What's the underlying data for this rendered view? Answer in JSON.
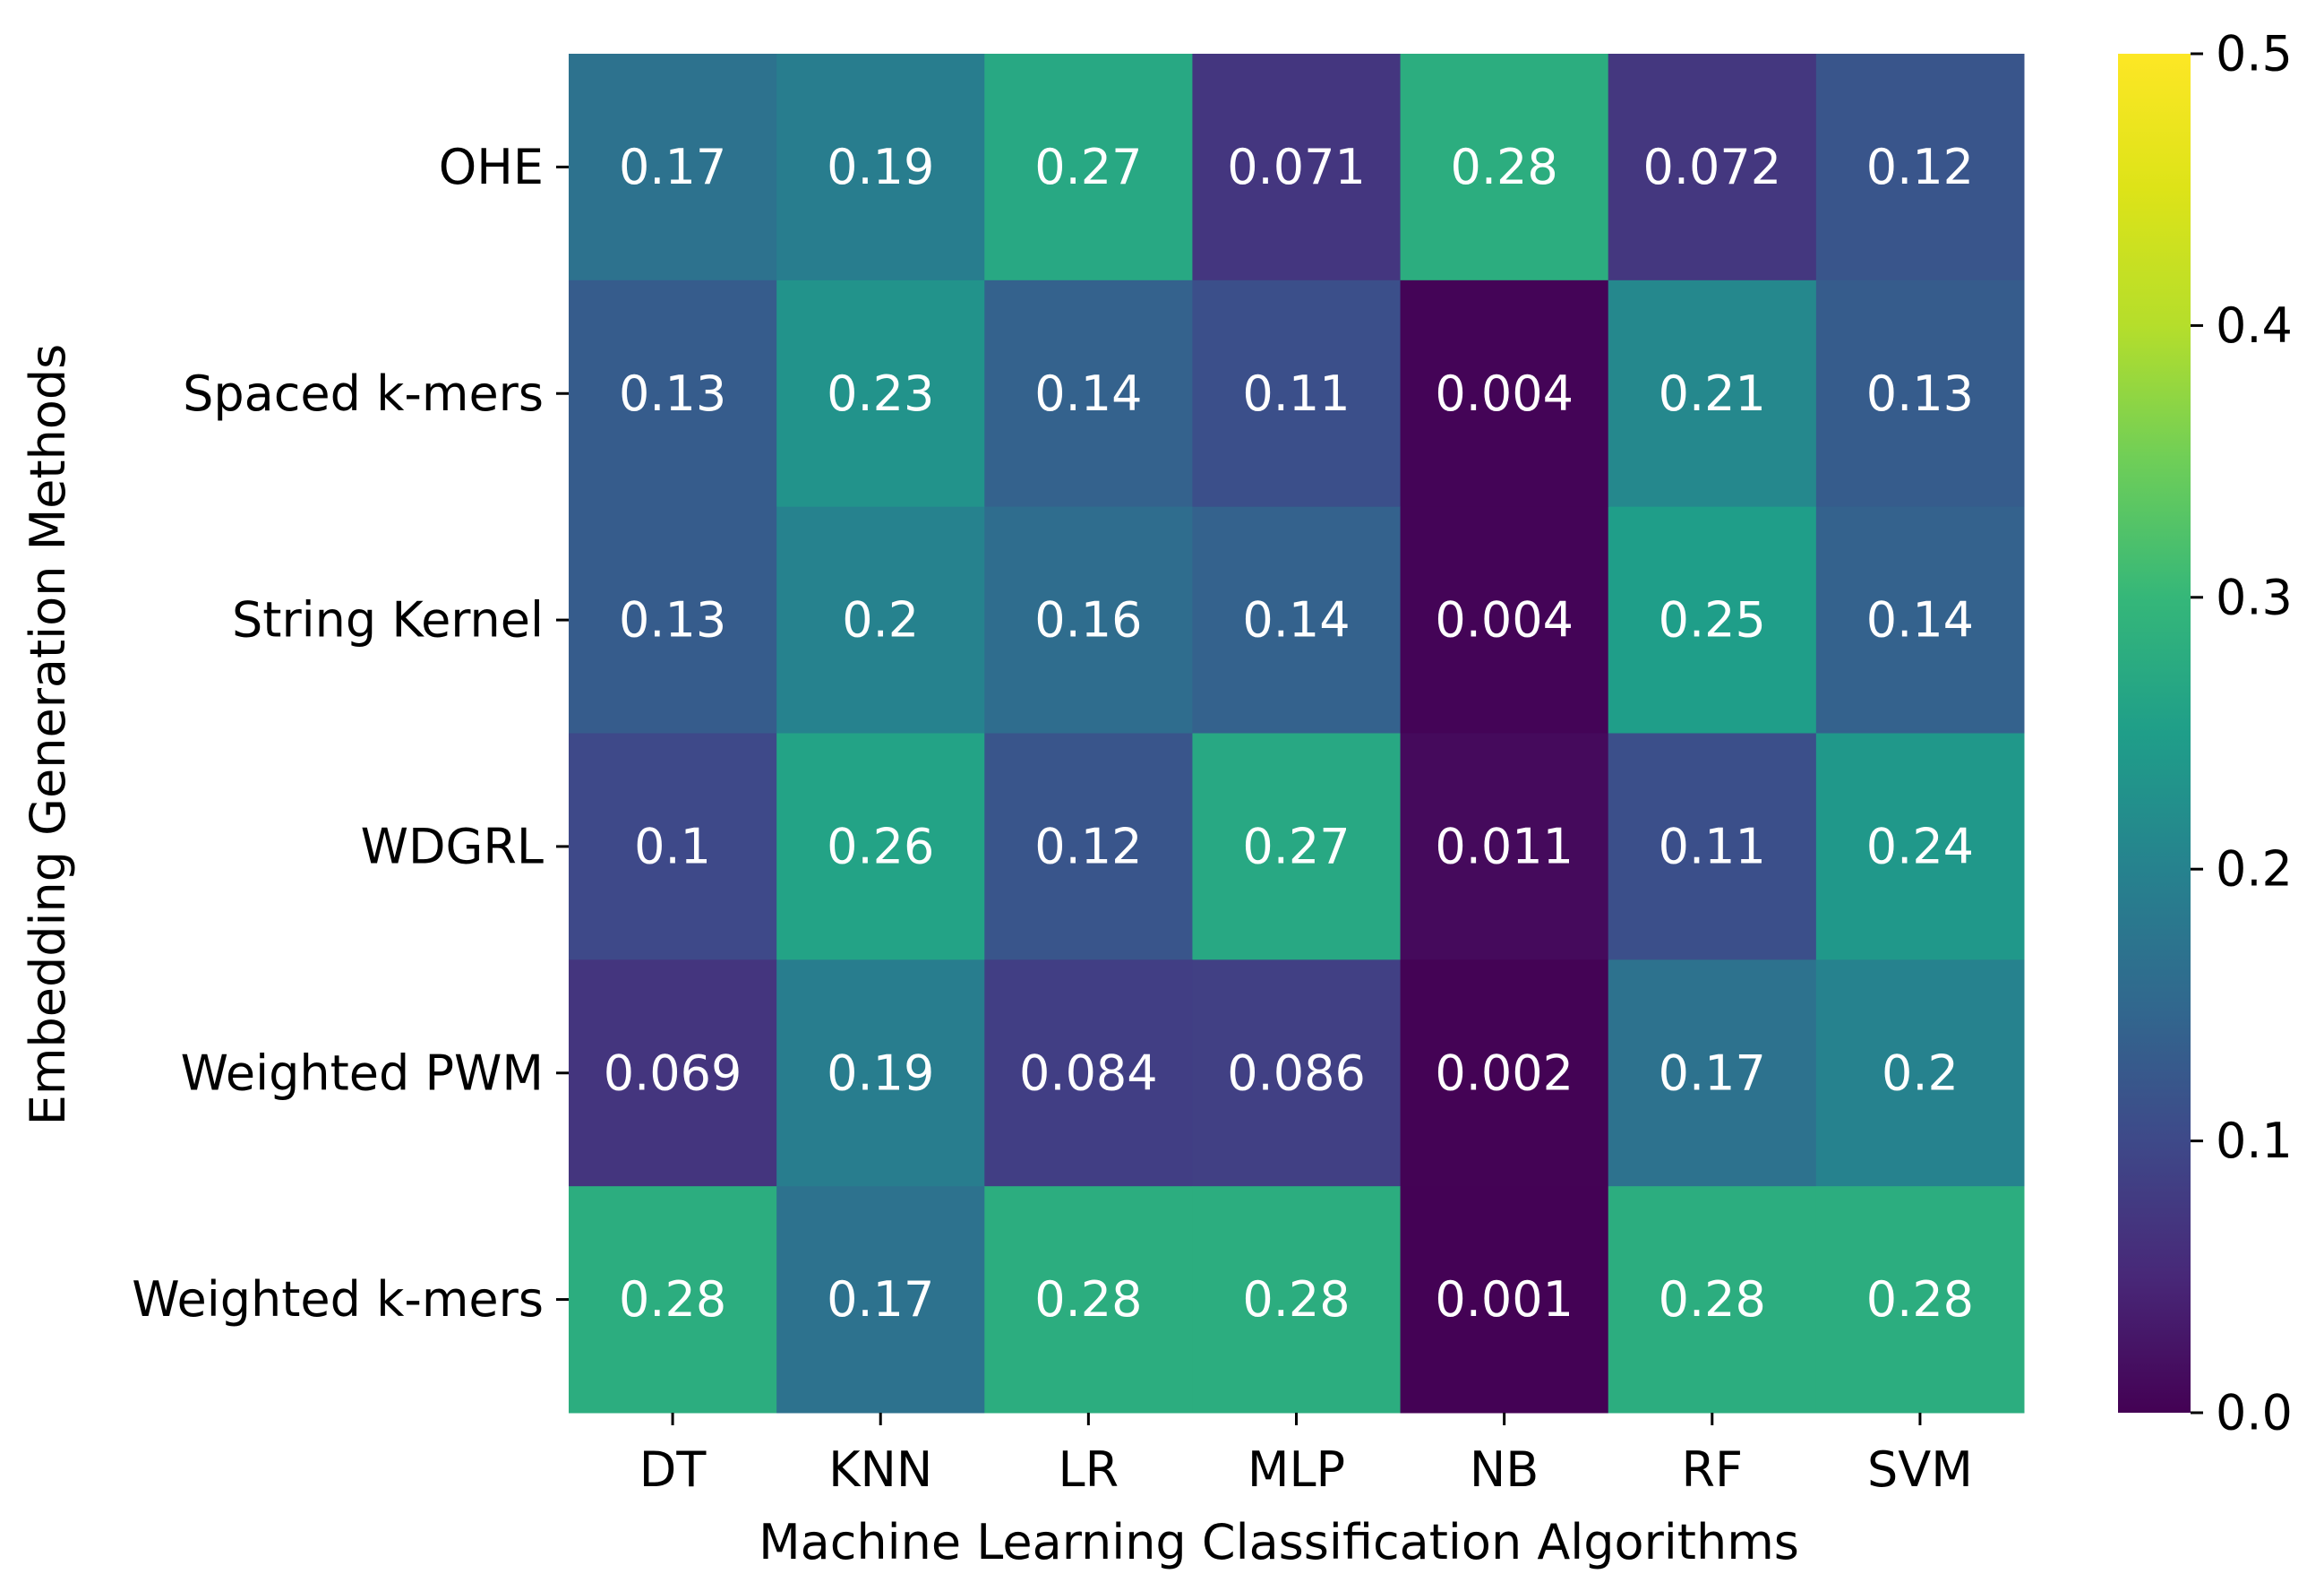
{
  "chart_data": {
    "type": "heatmap",
    "title": "",
    "xlabel": "Machine Learning Classification Algorithms",
    "ylabel": "Embedding Generation Methods",
    "x_categories": [
      "DT",
      "KNN",
      "LR",
      "MLP",
      "NB",
      "RF",
      "SVM"
    ],
    "y_categories": [
      "OHE",
      "Spaced k-mers",
      "String Kernel",
      "WDGRL",
      "Weighted PWM",
      "Weighted k-mers"
    ],
    "values": [
      [
        0.17,
        0.19,
        0.27,
        0.071,
        0.28,
        0.072,
        0.12
      ],
      [
        0.13,
        0.23,
        0.14,
        0.11,
        0.004,
        0.21,
        0.13
      ],
      [
        0.13,
        0.2,
        0.16,
        0.14,
        0.004,
        0.25,
        0.14
      ],
      [
        0.1,
        0.26,
        0.12,
        0.27,
        0.011,
        0.11,
        0.24
      ],
      [
        0.069,
        0.19,
        0.084,
        0.086,
        0.002,
        0.17,
        0.2
      ],
      [
        0.28,
        0.17,
        0.28,
        0.28,
        0.001,
        0.28,
        0.28
      ]
    ],
    "cell_labels": [
      [
        "0.17",
        "0.19",
        "0.27",
        "0.071",
        "0.28",
        "0.072",
        "0.12"
      ],
      [
        "0.13",
        "0.23",
        "0.14",
        "0.11",
        "0.004",
        "0.21",
        "0.13"
      ],
      [
        "0.13",
        "0.2",
        "0.16",
        "0.14",
        "0.004",
        "0.25",
        "0.14"
      ],
      [
        "0.1",
        "0.26",
        "0.12",
        "0.27",
        "0.011",
        "0.11",
        "0.24"
      ],
      [
        "0.069",
        "0.19",
        "0.084",
        "0.086",
        "0.002",
        "0.17",
        "0.2"
      ],
      [
        "0.28",
        "0.17",
        "0.28",
        "0.28",
        "0.001",
        "0.28",
        "0.28"
      ]
    ],
    "colormap": "viridis",
    "vmin": 0.0,
    "vmax": 0.5,
    "colorbar_ticks": [
      "0.0",
      "0.1",
      "0.2",
      "0.3",
      "0.4",
      "0.5"
    ],
    "colorbar_tick_values": [
      0.0,
      0.1,
      0.2,
      0.3,
      0.4,
      0.5
    ]
  }
}
